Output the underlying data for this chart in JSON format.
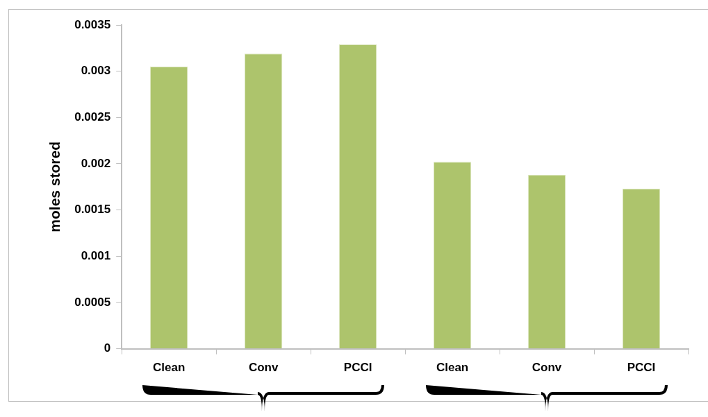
{
  "chart_data": {
    "type": "bar",
    "ylabel": "moles stored",
    "categories": [
      "Clean",
      "Conv",
      "PCCI",
      "Clean",
      "Conv",
      "PCCI"
    ],
    "values": [
      0.00305,
      0.00319,
      0.00329,
      0.00202,
      0.00188,
      0.00173
    ],
    "color": "#adc46c",
    "ylim": [
      0,
      0.0035
    ],
    "yticks": [
      0,
      0.0005,
      0.001,
      0.0015,
      0.002,
      0.0025,
      0.003,
      0.0035
    ],
    "grid": false,
    "legend": false
  }
}
